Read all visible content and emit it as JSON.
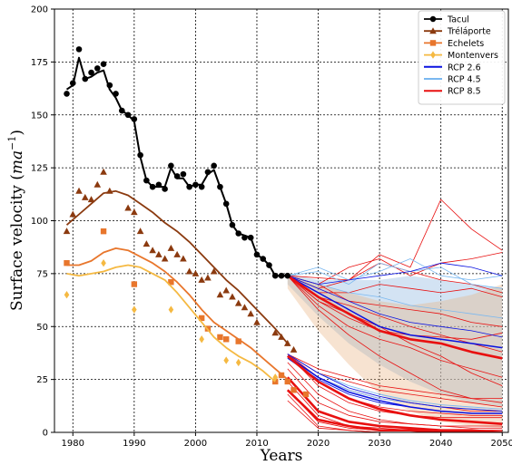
{
  "chart_data": {
    "type": "line",
    "xlabel": "Years",
    "ylabel_main": "Surface velocity (",
    "ylabel_unit": "ma",
    "ylabel_exp": "−1",
    "ylabel_close": ")",
    "xlim": [
      1977,
      2051
    ],
    "ylim": [
      0,
      200
    ],
    "xticks": [
      1980,
      1990,
      2000,
      2010,
      2020,
      2030,
      2040,
      2050
    ],
    "yticks": [
      0,
      25,
      50,
      75,
      100,
      125,
      150,
      175,
      200
    ],
    "grid": true,
    "legend_position": "top-right",
    "legend": [
      {
        "label": "Tacul",
        "color": "#000000",
        "marker": "circle"
      },
      {
        "label": "Tréláporte",
        "color": "#8b3a0f",
        "marker": "triangle"
      },
      {
        "label": "Echelets",
        "color": "#e8762c",
        "marker": "square"
      },
      {
        "label": "Montenvers",
        "color": "#f5b942",
        "marker": "diamond"
      },
      {
        "label": "RCP 2.6",
        "color": "#0a12e0",
        "marker": "none"
      },
      {
        "label": "RCP 4.5",
        "color": "#7ab8f0",
        "marker": "none"
      },
      {
        "label": "RCP 8.5",
        "color": "#e81010",
        "marker": "none"
      }
    ],
    "observed": [
      {
        "name": "Tacul",
        "color": "#000000",
        "marker": "circle",
        "x": [
          1979,
          1980,
          1981,
          1982,
          1983,
          1984,
          1985,
          1986,
          1987,
          1988,
          1989,
          1990,
          1991,
          1992,
          1993,
          1994,
          1995,
          1996,
          1997,
          1998,
          1999,
          2000,
          2001,
          2002,
          2003,
          2004,
          2005,
          2006,
          2007,
          2008,
          2009,
          2010,
          2011,
          2012,
          2013,
          2014,
          2015
        ],
        "y": [
          160,
          165,
          181,
          167,
          170,
          172,
          174,
          164,
          160,
          152,
          150,
          148,
          131,
          119,
          116,
          117,
          115,
          126,
          121,
          122,
          116,
          117,
          116,
          123,
          126,
          116,
          108,
          98,
          94,
          92,
          92,
          84,
          82,
          79,
          74,
          74,
          74
        ],
        "model_x": [
          1979,
          1980,
          1981,
          1982,
          1983,
          1984,
          1985,
          1986,
          1987,
          1988,
          1989,
          1990,
          1991,
          1992,
          1993,
          1994,
          1995,
          1996,
          1997,
          1998,
          1999,
          2000,
          2001,
          2002,
          2003,
          2004,
          2005,
          2006,
          2007,
          2008,
          2009,
          2010,
          2011,
          2012,
          2013,
          2014,
          2015
        ],
        "model_y": [
          162,
          164,
          177,
          167,
          168,
          170,
          171,
          162,
          158,
          152,
          150,
          147,
          130,
          119,
          116,
          116,
          116,
          125,
          120,
          120,
          116,
          117,
          117,
          122,
          124,
          116,
          108,
          98,
          94,
          93,
          92,
          84,
          82,
          79,
          74,
          74,
          74
        ]
      },
      {
        "name": "Tréláporte",
        "color": "#8b3a0f",
        "marker": "triangle",
        "x": [
          1979,
          1980,
          1981,
          1982,
          1983,
          1984,
          1985,
          1986,
          1989,
          1990,
          1991,
          1992,
          1993,
          1994,
          1995,
          1996,
          1997,
          1998,
          1999,
          2000,
          2001,
          2002,
          2003,
          2004,
          2005,
          2006,
          2007,
          2008,
          2009,
          2010,
          2013,
          2014,
          2015,
          2016
        ],
        "y": [
          95,
          103,
          114,
          111,
          110,
          117,
          123,
          114,
          106,
          104,
          95,
          89,
          86,
          84,
          82,
          87,
          84,
          82,
          76,
          75,
          72,
          73,
          76,
          65,
          67,
          64,
          61,
          59,
          56,
          52,
          47,
          45,
          42,
          39
        ],
        "model_x": [
          1979,
          1981,
          1983,
          1985,
          1987,
          1989,
          1991,
          1993,
          1995,
          1997,
          1999,
          2001,
          2003,
          2005,
          2007,
          2009,
          2011,
          2013,
          2015
        ],
        "model_y": [
          98,
          103,
          108,
          113,
          114,
          112,
          108,
          104,
          99,
          95,
          90,
          84,
          78,
          72,
          67,
          61,
          55,
          49,
          42
        ]
      },
      {
        "name": "Echelets",
        "color": "#e8762c",
        "marker": "square",
        "x": [
          1979,
          1985,
          1990,
          1996,
          2001,
          2002,
          2004,
          2005,
          2007,
          2013,
          2014,
          2015,
          2016,
          2018
        ],
        "y": [
          80,
          95,
          70,
          71,
          54,
          49,
          45,
          44,
          43,
          24,
          27,
          24,
          20,
          18
        ],
        "model_x": [
          1979,
          1981,
          1983,
          1985,
          1987,
          1989,
          1991,
          1993,
          1995,
          1997,
          1999,
          2001,
          2003,
          2005,
          2007,
          2009,
          2011,
          2013,
          2015
        ],
        "model_y": [
          79,
          79,
          81,
          85,
          87,
          86,
          83,
          80,
          76,
          71,
          65,
          58,
          52,
          48,
          44,
          40,
          35,
          30,
          25
        ]
      },
      {
        "name": "Montenvers",
        "color": "#f5b942",
        "marker": "diamond",
        "x": [
          1979,
          1985,
          1990,
          1996,
          2001,
          2005,
          2007,
          2013
        ],
        "y": [
          65,
          80,
          58,
          58,
          44,
          34,
          33,
          26
        ],
        "model_x": [
          1979,
          1981,
          1983,
          1985,
          1987,
          1989,
          1991,
          1993,
          1995,
          1997,
          1999,
          2001,
          2003,
          2005,
          2007,
          2009,
          2011,
          2013
        ],
        "model_y": [
          75,
          74,
          75,
          76,
          78,
          79,
          78,
          75,
          72,
          66,
          59,
          52,
          45,
          40,
          36,
          33,
          29,
          24
        ]
      }
    ],
    "projections": {
      "x": [
        2015,
        2020,
        2025,
        2030,
        2035,
        2040,
        2045,
        2050
      ],
      "bands": [
        {
          "color": "#a8c8e8",
          "opacity": 0.5,
          "upper": [
            75,
            72,
            72,
            72,
            74,
            72,
            70,
            68
          ],
          "lower": [
            70,
            55,
            42,
            32,
            24,
            18,
            14,
            12
          ]
        },
        {
          "color": "#e8b07a",
          "opacity": 0.35,
          "upper": [
            75,
            70,
            66,
            62,
            60,
            62,
            65,
            70
          ],
          "lower": [
            68,
            48,
            32,
            18,
            10,
            5,
            3,
            2
          ]
        }
      ],
      "tacul": [
        {
          "scenario": "RCP 8.5",
          "color": "#e81010",
          "width": 0.8,
          "y": [
            74,
            73,
            72,
            84,
            78,
            110,
            96,
            86
          ]
        },
        {
          "scenario": "RCP 8.5",
          "color": "#e81010",
          "width": 0.8,
          "y": [
            74,
            70,
            78,
            82,
            74,
            80,
            82,
            85
          ]
        },
        {
          "scenario": "RCP 8.5",
          "color": "#e81010",
          "width": 0.8,
          "y": [
            74,
            68,
            72,
            80,
            76,
            72,
            70,
            66
          ]
        },
        {
          "scenario": "RCP 8.5",
          "color": "#e81010",
          "width": 0.8,
          "y": [
            74,
            66,
            66,
            70,
            68,
            66,
            68,
            64
          ]
        },
        {
          "scenario": "RCP 8.5",
          "color": "#e81010",
          "width": 0.8,
          "y": [
            74,
            64,
            60,
            55,
            50,
            46,
            42,
            38
          ]
        },
        {
          "scenario": "RCP 8.5",
          "color": "#e81010",
          "width": 0.8,
          "y": [
            74,
            62,
            54,
            48,
            46,
            45,
            44,
            47
          ]
        },
        {
          "scenario": "RCP 8.5",
          "color": "#e81010",
          "width": 0.8,
          "y": [
            74,
            60,
            50,
            44,
            40,
            34,
            30,
            26
          ]
        },
        {
          "scenario": "RCP 8.5",
          "color": "#e81010",
          "width": 0.8,
          "y": [
            74,
            58,
            46,
            36,
            28,
            20,
            16,
            14
          ]
        },
        {
          "scenario": "RCP 8.5",
          "color": "#e81010",
          "width": 0.8,
          "y": [
            74,
            62,
            56,
            50,
            42,
            36,
            28,
            22
          ]
        },
        {
          "scenario": "RCP 8.5",
          "color": "#e81010",
          "width": 0.8,
          "y": [
            74,
            70,
            62,
            60,
            58,
            56,
            52,
            50
          ]
        },
        {
          "scenario": "RCP 4.5",
          "color": "#7ab8f0",
          "width": 0.8,
          "y": [
            74,
            78,
            72,
            76,
            82,
            74,
            72,
            74
          ]
        },
        {
          "scenario": "RCP 4.5",
          "color": "#7ab8f0",
          "width": 0.8,
          "y": [
            74,
            76,
            70,
            80,
            76,
            78,
            70,
            68
          ]
        },
        {
          "scenario": "RCP 4.5",
          "color": "#7ab8f0",
          "width": 0.8,
          "y": [
            74,
            70,
            66,
            64,
            60,
            58,
            56,
            54
          ]
        },
        {
          "scenario": "RCP 2.6",
          "color": "#0a12e0",
          "width": 0.8,
          "y": [
            74,
            70,
            72,
            74,
            76,
            80,
            78,
            74
          ]
        },
        {
          "scenario": "RCP 2.6",
          "color": "#0a12e0",
          "width": 0.8,
          "y": [
            74,
            68,
            62,
            56,
            52,
            50,
            48,
            45
          ]
        },
        {
          "scenario": "RCP 2.6",
          "color": "#0a12e0",
          "width": 1.5,
          "y": [
            74,
            66,
            58,
            50,
            46,
            44,
            42,
            40
          ]
        },
        {
          "scenario": "RCP 8.5",
          "color": "#e81010",
          "width": 2.6,
          "y": [
            74,
            64,
            56,
            48,
            44,
            42,
            38,
            35
          ]
        }
      ],
      "lower": [
        {
          "scenario": "RCP 8.5",
          "color": "#e81010",
          "width": 0.8,
          "y": [
            37,
            22,
            14,
            10,
            8,
            7,
            7,
            7
          ]
        },
        {
          "scenario": "RCP 8.5",
          "color": "#e81010",
          "width": 0.8,
          "y": [
            37,
            26,
            20,
            16,
            14,
            12,
            10,
            10
          ]
        },
        {
          "scenario": "RCP 8.5",
          "color": "#e81010",
          "width": 0.8,
          "y": [
            37,
            28,
            24,
            20,
            18,
            16,
            14,
            12
          ]
        },
        {
          "scenario": "RCP 8.5",
          "color": "#e81010",
          "width": 0.8,
          "y": [
            37,
            30,
            26,
            22,
            20,
            18,
            16,
            16
          ]
        },
        {
          "scenario": "RCP 8.5",
          "color": "#e81010",
          "width": 0.8,
          "y": [
            37,
            24,
            16,
            12,
            10,
            9,
            8,
            8
          ]
        },
        {
          "scenario": "RCP 8.5",
          "color": "#e81010",
          "width": 0.8,
          "y": [
            33,
            18,
            10,
            6,
            4,
            3,
            3,
            3
          ]
        },
        {
          "scenario": "RCP 8.5",
          "color": "#e81010",
          "width": 0.8,
          "y": [
            30,
            14,
            8,
            5,
            4,
            3,
            2,
            2
          ]
        },
        {
          "scenario": "RCP 8.5",
          "color": "#e81010",
          "width": 0.8,
          "y": [
            26,
            10,
            5,
            3,
            2,
            1,
            1,
            1
          ]
        },
        {
          "scenario": "RCP 8.5",
          "color": "#e81010",
          "width": 0.8,
          "y": [
            24,
            8,
            3,
            2,
            1,
            1,
            1,
            1
          ]
        },
        {
          "scenario": "RCP 8.5",
          "color": "#e81010",
          "width": 0.8,
          "y": [
            20,
            5,
            2,
            1,
            1,
            0,
            0,
            0
          ]
        },
        {
          "scenario": "RCP 8.5",
          "color": "#e81010",
          "width": 0.8,
          "y": [
            18,
            3,
            1,
            0,
            0,
            0,
            0,
            0
          ]
        },
        {
          "scenario": "RCP 8.5",
          "color": "#e81010",
          "width": 0.8,
          "y": [
            15,
            2,
            1,
            0,
            0,
            0,
            0,
            0
          ]
        },
        {
          "scenario": "RCP 4.5",
          "color": "#7ab8f0",
          "width": 0.9,
          "y": [
            37,
            28,
            22,
            18,
            15,
            13,
            12,
            11
          ]
        },
        {
          "scenario": "RCP 4.5",
          "color": "#7ab8f0",
          "width": 0.9,
          "y": [
            35,
            26,
            20,
            16,
            14,
            12,
            11,
            10
          ]
        },
        {
          "scenario": "RCP 2.6",
          "color": "#0a12e0",
          "width": 0.9,
          "y": [
            37,
            28,
            21,
            17,
            14,
            12,
            11,
            10
          ]
        },
        {
          "scenario": "RCP 2.6",
          "color": "#0a12e0",
          "width": 0.9,
          "y": [
            35,
            25,
            18,
            14,
            12,
            10,
            9,
            9
          ]
        },
        {
          "scenario": "RCP 2.6",
          "color": "#0a12e0",
          "width": 1.5,
          "y": [
            36,
            26,
            19,
            15,
            12,
            10,
            9,
            9
          ]
        },
        {
          "scenario": "RCP 8.5",
          "color": "#e81010",
          "width": 2.6,
          "y": [
            36,
            24,
            16,
            11,
            8,
            6,
            5,
            4
          ]
        },
        {
          "scenario": "RCP 8.5",
          "color": "#e81010",
          "width": 2.6,
          "y": [
            26,
            10,
            5,
            3,
            2,
            1,
            1,
            0
          ]
        },
        {
          "scenario": "RCP 8.5",
          "color": "#e81010",
          "width": 2.6,
          "y": [
            20,
            6,
            3,
            1,
            1,
            0,
            0,
            0
          ]
        }
      ]
    }
  }
}
